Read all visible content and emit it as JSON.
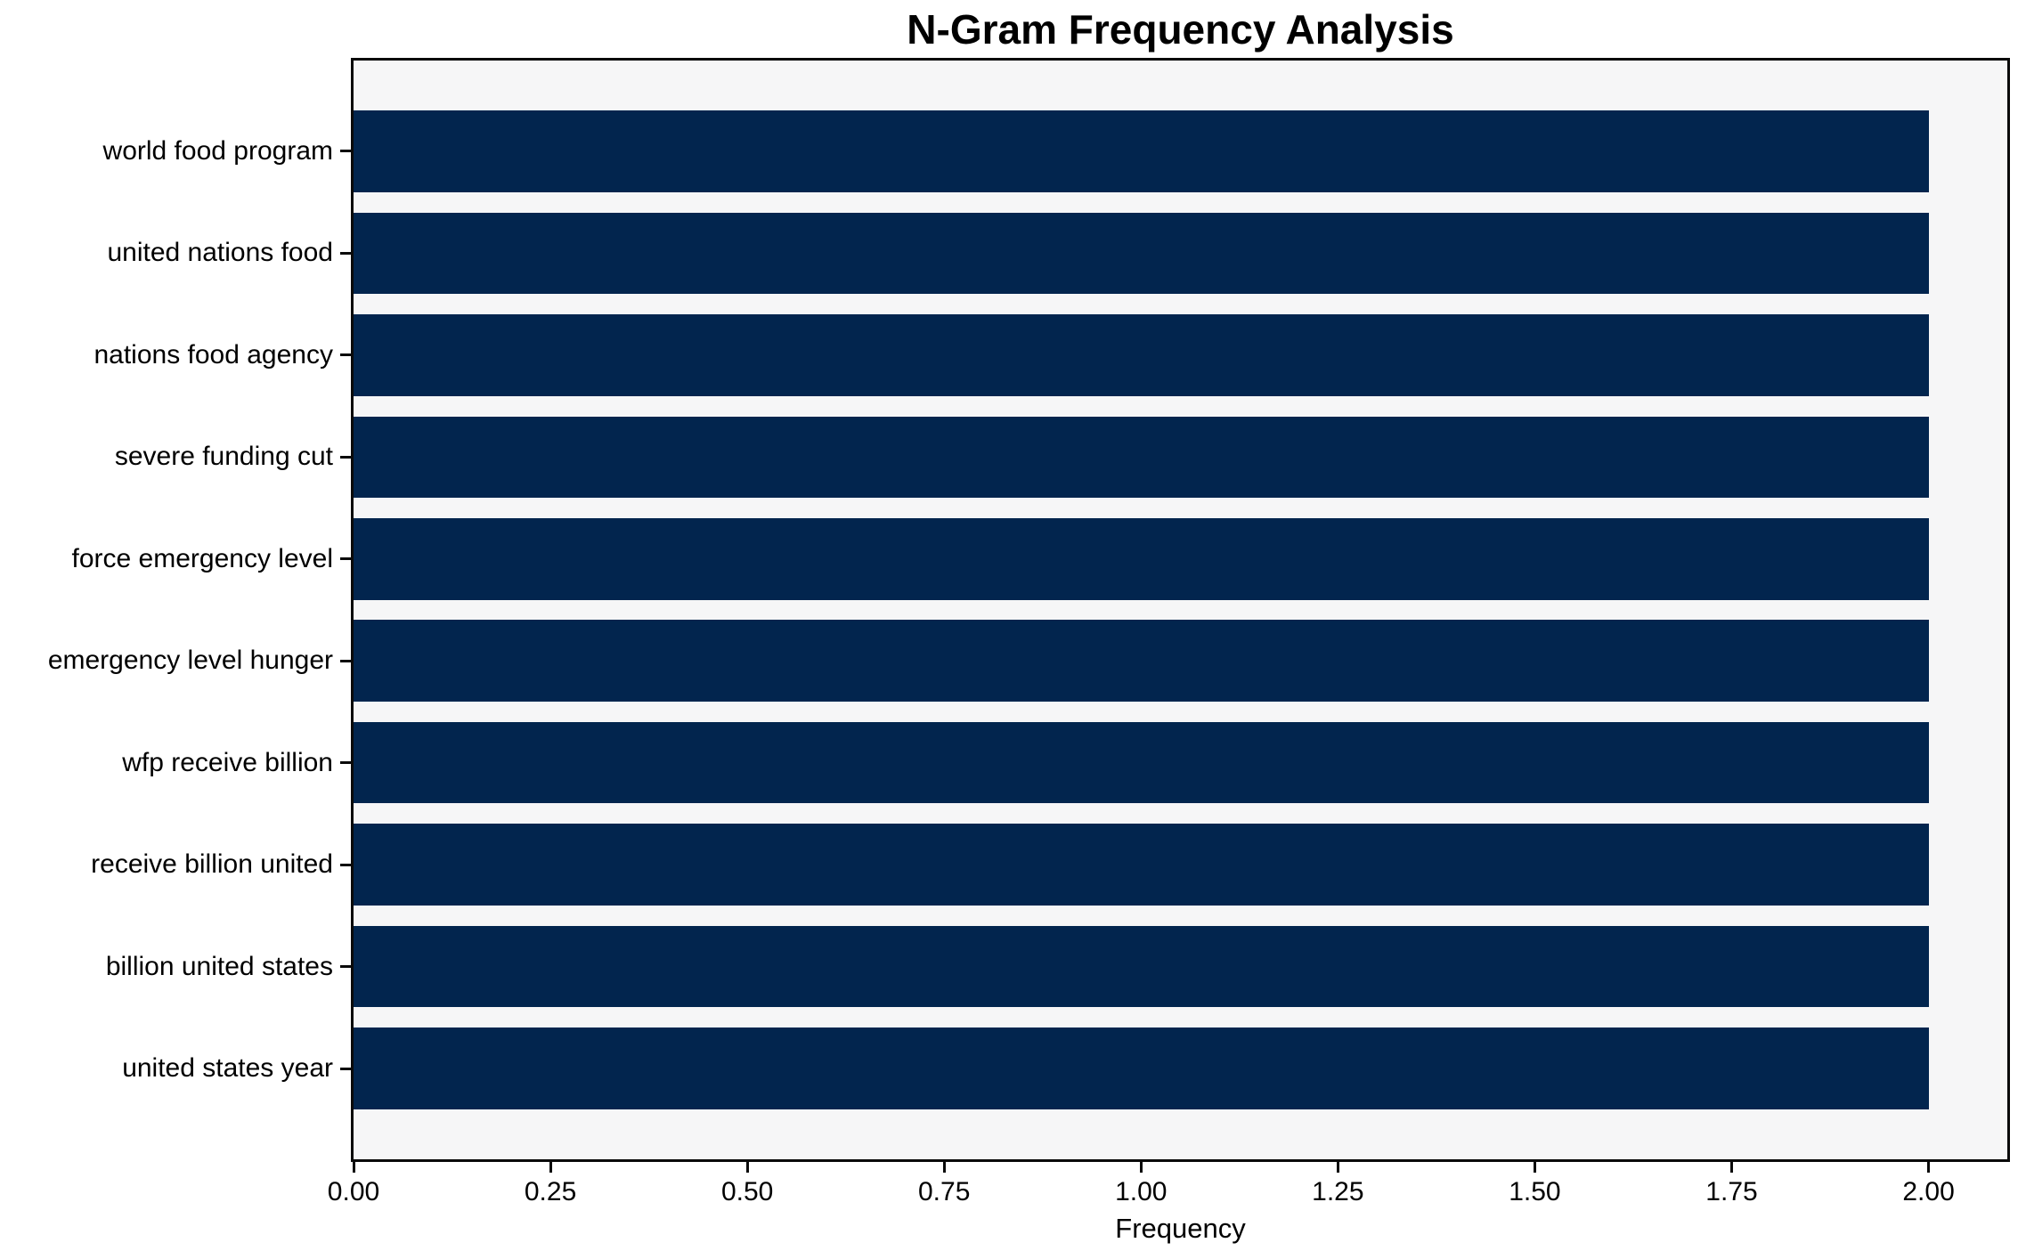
{
  "chart_data": {
    "type": "bar",
    "orientation": "horizontal",
    "title": "N-Gram Frequency Analysis",
    "xlabel": "Frequency",
    "ylabel": "",
    "categories": [
      "world food program",
      "united nations food",
      "nations food agency",
      "severe funding cut",
      "force emergency level",
      "emergency level hunger",
      "wfp receive billion",
      "receive billion united",
      "billion united states",
      "united states year"
    ],
    "values": [
      2,
      2,
      2,
      2,
      2,
      2,
      2,
      2,
      2,
      2
    ],
    "xlim": [
      0,
      2.1
    ],
    "xticks": [
      0,
      0.25,
      0.5,
      0.75,
      1,
      1.25,
      1.5,
      1.75,
      2
    ],
    "xtick_labels": [
      "0.00",
      "0.25",
      "0.50",
      "0.75",
      "1.00",
      "1.25",
      "1.50",
      "1.75",
      "2.00"
    ],
    "grid": false,
    "legend": null,
    "colors": {
      "bar": "#02254e",
      "plot_background": "#f6f6f7",
      "figure_background": "#ffffff",
      "spine": "#0a0a0a",
      "text": "#000000"
    }
  }
}
